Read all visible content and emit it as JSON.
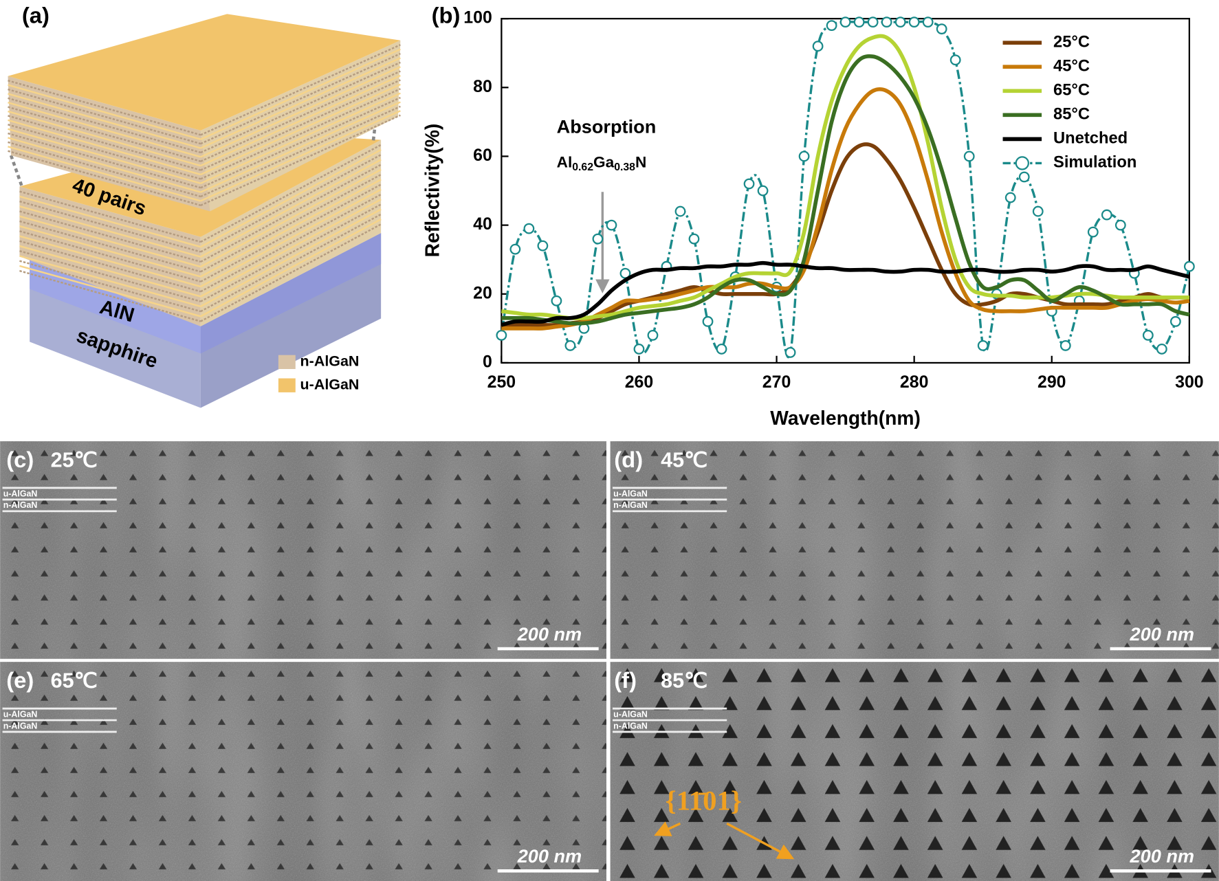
{
  "panel_labels": [
    "(a)",
    "(b)",
    "(c)",
    "(d)",
    "(e)",
    "(f)"
  ],
  "diagram": {
    "stack_label": "40 pairs",
    "layers": [
      "AlN",
      "sapphire"
    ],
    "legend": [
      {
        "name": "n-AlGaN",
        "color": "#d9c3a6"
      },
      {
        "name": "u-AlGaN",
        "color": "#f2c46b"
      }
    ]
  },
  "chart_data": {
    "type": "line",
    "x_label": "Wavelength(nm)",
    "y_label": "Reflectivity(%)",
    "annotation": "Absorption",
    "formula": [
      "Al",
      "0.62",
      "Ga",
      "0.38",
      "N"
    ],
    "xlim": [
      250,
      300
    ],
    "ylim": [
      0,
      100
    ],
    "xticks": [
      250,
      260,
      270,
      280,
      290,
      300
    ],
    "yticks": [
      0,
      20,
      40,
      60,
      80,
      100
    ],
    "legend_position": "top-right",
    "x": [
      250,
      251,
      252,
      253,
      254,
      255,
      256,
      257,
      258,
      259,
      260,
      261,
      262,
      263,
      264,
      265,
      266,
      267,
      268,
      269,
      270,
      271,
      272,
      273,
      274,
      275,
      276,
      277,
      278,
      279,
      280,
      281,
      282,
      283,
      284,
      285,
      286,
      287,
      288,
      289,
      290,
      291,
      292,
      293,
      294,
      295,
      296,
      297,
      298,
      299,
      300
    ],
    "series": [
      {
        "name": "25°C",
        "color": "#7b3f0a",
        "values": [
          11,
          11,
          11,
          11,
          11,
          11.5,
          12,
          13,
          15,
          17,
          18,
          19,
          20,
          21,
          22,
          21,
          20,
          20,
          20,
          20,
          20,
          22,
          28,
          38,
          50,
          59,
          63,
          63,
          59,
          53,
          45,
          36,
          27,
          20,
          17,
          17,
          18,
          20,
          20,
          19,
          18,
          17,
          17,
          17,
          17,
          18,
          19,
          20,
          19,
          19,
          19
        ]
      },
      {
        "name": "45°C",
        "color": "#c87a0a",
        "values": [
          10,
          10,
          10,
          10,
          10.5,
          11,
          12,
          14,
          16,
          18,
          18,
          18.5,
          19,
          20,
          21,
          22,
          22,
          22,
          23,
          23,
          22,
          22,
          27,
          40,
          56,
          68,
          75,
          79,
          79,
          75,
          66,
          53,
          38,
          26,
          18,
          15.5,
          15,
          15,
          15,
          15.5,
          16,
          16,
          16,
          16,
          16,
          17,
          18,
          18.5,
          18,
          17.5,
          18
        ]
      },
      {
        "name": "65°C",
        "color": "#b5d334",
        "values": [
          15,
          14.5,
          14,
          14,
          13.5,
          13,
          13,
          13.5,
          14,
          15,
          16,
          16.5,
          17,
          18,
          19,
          21,
          23,
          25,
          26,
          26,
          26,
          26.5,
          38,
          60,
          76,
          86,
          92,
          94.5,
          94.5,
          90,
          80,
          64,
          45,
          30,
          22,
          20,
          19.5,
          19.5,
          19,
          19,
          19,
          19.5,
          20,
          20,
          19.5,
          19,
          19,
          19,
          19,
          19,
          19
        ]
      },
      {
        "name": "85°C",
        "color": "#3a6e22",
        "values": [
          13,
          13,
          13,
          12.5,
          12,
          11.5,
          11.5,
          12,
          13,
          14,
          14.5,
          15,
          15.5,
          16,
          17,
          19,
          22,
          24,
          24,
          22,
          20,
          21,
          30,
          50,
          70,
          82,
          88,
          89,
          87,
          83,
          77,
          68,
          56,
          42,
          29,
          22,
          22,
          24,
          24,
          21,
          18,
          20,
          22,
          21,
          19,
          17,
          17,
          17,
          17,
          15,
          14
        ]
      },
      {
        "name": "Unetched",
        "color": "#000000",
        "values": [
          11,
          12,
          12,
          12,
          13,
          13,
          14,
          17,
          21,
          24,
          26,
          27,
          27,
          27.5,
          27.5,
          28,
          28,
          28.5,
          28.5,
          29,
          28.5,
          28.5,
          28,
          27.5,
          27.5,
          27,
          27,
          27,
          26.5,
          26.5,
          27,
          27,
          26.5,
          26.5,
          27,
          27,
          26.5,
          26.5,
          27,
          27,
          26.5,
          27,
          28,
          28,
          27,
          27,
          27,
          28,
          27,
          26,
          25
        ]
      },
      {
        "name": "Simulation",
        "color": "#1a8a8a",
        "marker": "circle",
        "dashed": true,
        "values": [
          8,
          33,
          39,
          34,
          18,
          5,
          10,
          36,
          40,
          26,
          4,
          8,
          28,
          44,
          36,
          12,
          4,
          25,
          52,
          50,
          22,
          3,
          60,
          92,
          98,
          99,
          99,
          99,
          99,
          99,
          99,
          99,
          97,
          88,
          60,
          5,
          20,
          48,
          54,
          44,
          15,
          5,
          18,
          38,
          43,
          40,
          26,
          8,
          4,
          12,
          28
        ]
      }
    ]
  },
  "sem_panels": [
    {
      "temperature": "25℃",
      "layers": [
        "u-AlGaN",
        "n-AlGaN"
      ],
      "scale_bar": "200 nm"
    },
    {
      "temperature": "45℃",
      "layers": [
        "u-AlGaN",
        "n-AlGaN"
      ],
      "scale_bar": "200 nm"
    },
    {
      "temperature": "65℃",
      "layers": [
        "u-AlGaN",
        "n-AlGaN"
      ],
      "scale_bar": "200 nm"
    },
    {
      "temperature": "85℃",
      "layers": [
        "u-AlGaN",
        "n-AlGaN"
      ],
      "scale_bar": "200 nm"
    }
  ],
  "facet_annotation": "{11̄01}"
}
